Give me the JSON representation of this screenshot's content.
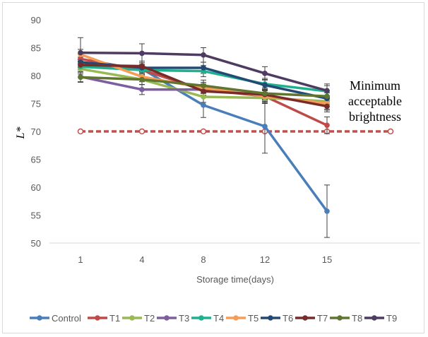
{
  "chart_data": {
    "type": "line",
    "title": "",
    "xlabel": "Storage time(days)",
    "ylabel": "L*",
    "ylim": [
      50,
      90
    ],
    "yticks": [
      50,
      55,
      60,
      65,
      70,
      75,
      80,
      85,
      90
    ],
    "categories": [
      "1",
      "4",
      "8",
      "12",
      "15"
    ],
    "grid": false,
    "legend": "bottom",
    "series": [
      {
        "name": "Control",
        "color": "#4a7ebb",
        "values": [
          81.8,
          81.2,
          74.7,
          70.9,
          55.7
        ],
        "err": [
          0.8,
          0.8,
          2.2,
          4.8,
          4.7
        ]
      },
      {
        "name": "T1",
        "color": "#be4b48",
        "values": [
          83.0,
          81.0,
          77.5,
          76.3,
          71.1
        ],
        "err": [
          0.9,
          0.9,
          1.0,
          1.2,
          1.5
        ]
      },
      {
        "name": "T2",
        "color": "#98b954",
        "values": [
          81.2,
          79.3,
          76.2,
          76.0,
          75.4
        ],
        "err": [
          0.9,
          0.9,
          1.0,
          1.0,
          1.0
        ]
      },
      {
        "name": "T3",
        "color": "#7d5fa0",
        "values": [
          79.8,
          77.5,
          77.5,
          76.4,
          74.8
        ],
        "err": [
          0.9,
          0.9,
          1.0,
          1.0,
          1.0
        ]
      },
      {
        "name": "T4",
        "color": "#1fb18e",
        "values": [
          81.6,
          81.0,
          80.8,
          78.5,
          77.2
        ],
        "err": [
          0.9,
          0.9,
          1.0,
          1.0,
          1.0
        ]
      },
      {
        "name": "T5",
        "color": "#f59d56",
        "values": [
          83.8,
          79.8,
          77.8,
          76.3,
          75.0
        ],
        "err": [
          0.9,
          0.9,
          1.0,
          1.0,
          1.0
        ]
      },
      {
        "name": "T6",
        "color": "#234a75",
        "values": [
          82.4,
          81.4,
          81.4,
          78.3,
          75.9
        ],
        "err": [
          0.9,
          0.9,
          1.0,
          1.0,
          1.0
        ]
      },
      {
        "name": "T7",
        "color": "#772c2a",
        "values": [
          81.9,
          81.7,
          77.2,
          76.6,
          74.5
        ],
        "err": [
          0.9,
          0.9,
          1.0,
          1.0,
          1.0
        ]
      },
      {
        "name": "T8",
        "color": "#5f7530",
        "values": [
          79.7,
          79.3,
          78.2,
          76.8,
          76.3
        ],
        "err": [
          0.9,
          0.9,
          1.0,
          1.0,
          1.0
        ]
      },
      {
        "name": "T9",
        "color": "#4d3b62",
        "values": [
          84.1,
          84.0,
          83.7,
          80.4,
          77.3
        ],
        "err": [
          2.7,
          1.7,
          1.3,
          1.2,
          1.2
        ]
      }
    ],
    "threshold": {
      "value": 70,
      "color": "#c0504d",
      "label": "Minimum acceptable brightness",
      "label_lines": [
        "Minimum",
        "acceptable",
        "brightness"
      ]
    }
  }
}
